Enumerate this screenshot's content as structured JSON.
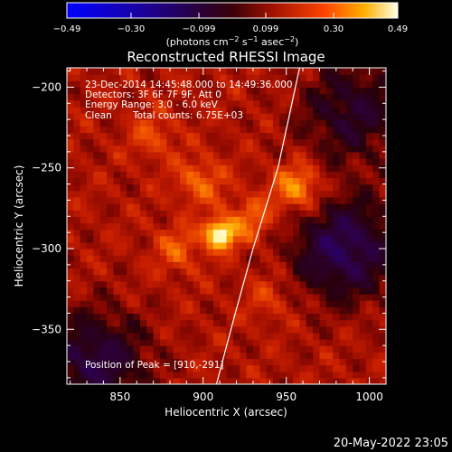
{
  "chart_data": {
    "type": "heatmap",
    "title": "Reconstructed RHESSI Image",
    "xlabel": "Heliocentric X (arcsec)",
    "ylabel": "Heliocentric Y (arcsec)",
    "xlim": [
      818,
      1010
    ],
    "ylim": [
      -384,
      -188
    ],
    "x_ticks": [
      850,
      900,
      950,
      1000
    ],
    "y_ticks": [
      -200,
      -250,
      -300,
      -350
    ],
    "x_tick_labels": [
      "850",
      "900",
      "950",
      "1000"
    ],
    "y_tick_labels": [
      "−200",
      "−250",
      "−300",
      "−350"
    ],
    "colorbar": {
      "range": [
        -0.49,
        0.49
      ],
      "ticks": [
        -0.49,
        -0.3,
        -0.099,
        0.099,
        0.3,
        0.49
      ],
      "tick_labels": [
        "−0.49",
        "−0.30",
        "−0.099",
        "0.099",
        "0.30",
        "0.49"
      ],
      "label_main": "(photons cm",
      "label_exp1": "−2",
      "label_mid": " s",
      "label_exp2": "−1",
      "label_tail": " asec",
      "label_exp3": "−2",
      "label_close": ")"
    },
    "peak": {
      "x": 910,
      "y": -291,
      "value": 0.49
    },
    "secondary_sources": [
      {
        "x": 957,
        "y": -262,
        "value": 0.3
      },
      {
        "x": 928,
        "y": -282,
        "value": 0.22
      },
      {
        "x": 898,
        "y": -258,
        "value": 0.22
      },
      {
        "x": 885,
        "y": -300,
        "value": 0.2
      },
      {
        "x": 870,
        "y": -230,
        "value": 0.18
      },
      {
        "x": 940,
        "y": -330,
        "value": 0.16
      }
    ],
    "negative_regions": [
      {
        "x": 985,
        "y": -300,
        "value": -0.18
      },
      {
        "x": 835,
        "y": -370,
        "value": -0.14
      },
      {
        "x": 990,
        "y": -215,
        "value": -0.1
      }
    ],
    "limb_curve": [
      [
        958,
        -188
      ],
      [
        945,
        -250
      ],
      [
        930,
        -300
      ],
      [
        918,
        -345
      ],
      [
        908,
        -384
      ]
    ],
    "annotations": {
      "time_range": "23-Dec-2014 14:45:48.000 to 14:49:36.000",
      "detectors": "Detectors: 3F 6F 7F 9F, Att 0",
      "energy": "Energy Range: 3.0 - 6.0 keV",
      "method": "Clean",
      "counts": "Total counts: 6.75E+03",
      "peak_position": "Position of Peak = [910,-291]"
    },
    "timestamp": "20-May-2022 23:05"
  },
  "colors": {
    "background": "#000000",
    "axes": "#ffffff",
    "limb": "#ffffff"
  }
}
